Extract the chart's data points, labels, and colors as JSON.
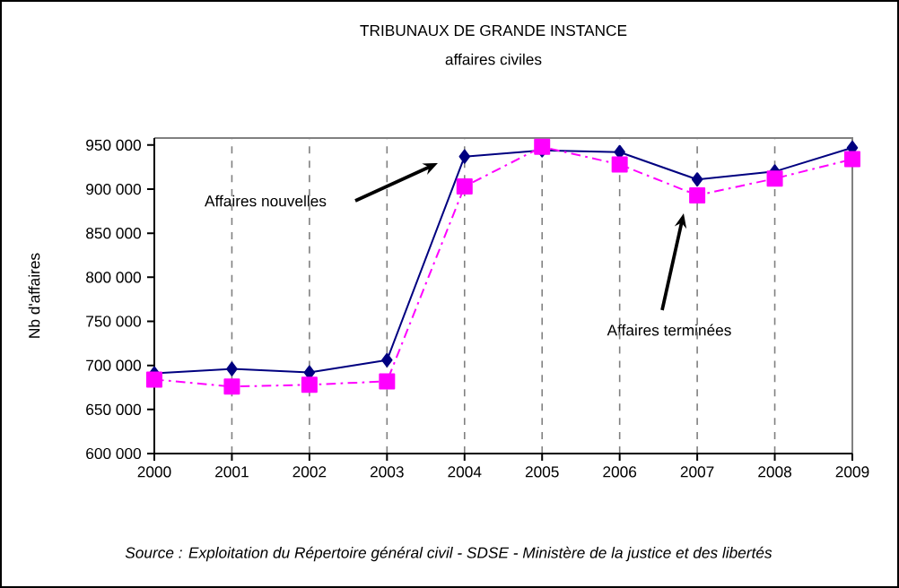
{
  "chart_data": {
    "type": "line",
    "title": "TRIBUNAUX DE GRANDE INSTANCE",
    "subtitle": "affaires civiles",
    "ylabel": "Nb d'affaires",
    "categories": [
      "2000",
      "2001",
      "2002",
      "2003",
      "2004",
      "2005",
      "2006",
      "2007",
      "2008",
      "2009"
    ],
    "series": [
      {
        "color": "#000080",
        "marker": "diamond",
        "line_style": "solid",
        "values": [
          691000,
          696000,
          692000,
          706000,
          937000,
          944000,
          942000,
          911000,
          920000,
          947000
        ]
      },
      {
        "color": "#ff00ff",
        "marker": "square",
        "line_style": "dashed",
        "values": [
          684000,
          676000,
          678000,
          682000,
          903000,
          948000,
          928000,
          893000,
          912000,
          934000
        ]
      }
    ],
    "ylim": [
      600000,
      958000
    ],
    "yticks": [
      {
        "value": 600000,
        "label": "600 000"
      },
      {
        "value": 650000,
        "label": "650 000"
      },
      {
        "value": 700000,
        "label": "700 000"
      },
      {
        "value": 750000,
        "label": "750 000"
      },
      {
        "value": 800000,
        "label": "800 000"
      },
      {
        "value": 850000,
        "label": "850 000"
      },
      {
        "value": 900000,
        "label": "900 000"
      },
      {
        "value": 950000,
        "label": "950 000"
      }
    ],
    "grid": "x",
    "annotations": [
      "Affaires nouvelles",
      "Affaires terminées",
      "Source : Exploitation du Répertoire général civil - SDSE - Ministère de la justice et des libertés"
    ]
  }
}
